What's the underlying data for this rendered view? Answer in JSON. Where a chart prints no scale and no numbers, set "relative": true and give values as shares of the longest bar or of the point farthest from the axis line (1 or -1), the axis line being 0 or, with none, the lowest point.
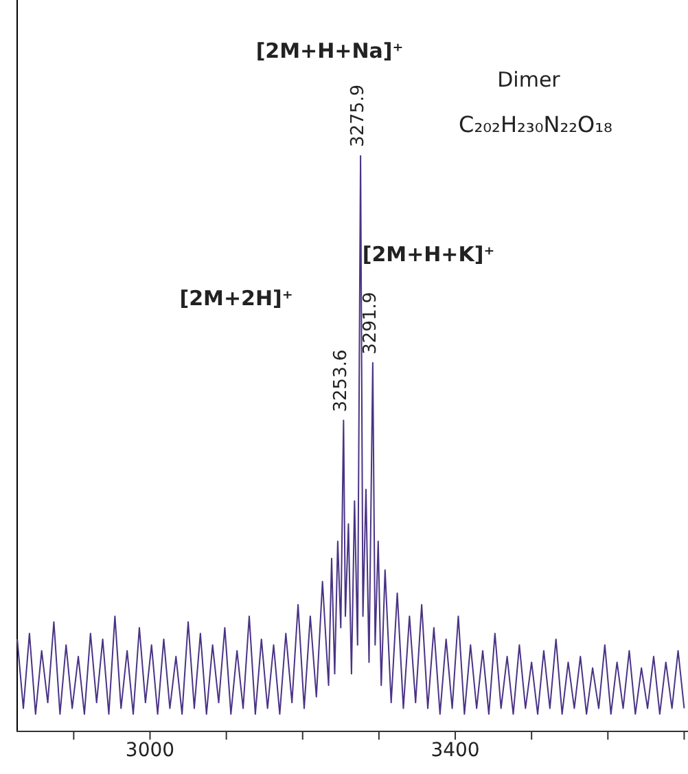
{
  "chart_data": {
    "type": "line",
    "relative": true,
    "color": "#4a3385",
    "marker": "none",
    "xlim": [
      2825,
      3705
    ],
    "xticks": [
      {
        "value": 2900,
        "label": null
      },
      3000,
      {
        "value": 3100,
        "label": null
      },
      {
        "value": 3200,
        "label": null
      },
      {
        "value": 3300,
        "label": null
      },
      3400,
      {
        "value": 3500,
        "label": null
      },
      {
        "value": 3600,
        "label": null
      },
      {
        "value": 3700,
        "label": null
      }
    ],
    "x": [
      2826,
      2834,
      2842,
      2850,
      2858,
      2866,
      2874,
      2882,
      2890,
      2898,
      2906,
      2914,
      2922,
      2930,
      2938,
      2946,
      2954,
      2962,
      2970,
      2978,
      2986,
      2994,
      3002,
      3010,
      3018,
      3026,
      3034,
      3042,
      3050,
      3058,
      3066,
      3074,
      3082,
      3090,
      3098,
      3106,
      3114,
      3122,
      3130,
      3138,
      3146,
      3154,
      3162,
      3170,
      3178,
      3186,
      3194,
      3202,
      3210,
      3218,
      3226,
      3234,
      3238,
      3242,
      3246,
      3250,
      3253.6,
      3256,
      3260,
      3264,
      3268,
      3272,
      3275.9,
      3279,
      3283,
      3287,
      3291.9,
      3295,
      3299,
      3303,
      3308,
      3316,
      3324,
      3332,
      3340,
      3348,
      3356,
      3364,
      3372,
      3380,
      3388,
      3396,
      3404,
      3412,
      3420,
      3428,
      3436,
      3444,
      3452,
      3460,
      3468,
      3476,
      3484,
      3492,
      3500,
      3508,
      3516,
      3524,
      3532,
      3540,
      3548,
      3556,
      3564,
      3572,
      3580,
      3588,
      3596,
      3604,
      3612,
      3620,
      3628,
      3636,
      3644,
      3652,
      3660,
      3668,
      3676,
      3684,
      3692,
      3700
    ],
    "values": [
      0.16,
      0.04,
      0.17,
      0.03,
      0.14,
      0.05,
      0.19,
      0.03,
      0.15,
      0.04,
      0.13,
      0.03,
      0.17,
      0.05,
      0.16,
      0.03,
      0.2,
      0.04,
      0.14,
      0.03,
      0.18,
      0.05,
      0.15,
      0.03,
      0.16,
      0.04,
      0.13,
      0.03,
      0.19,
      0.04,
      0.17,
      0.03,
      0.15,
      0.05,
      0.18,
      0.03,
      0.14,
      0.04,
      0.2,
      0.03,
      0.16,
      0.04,
      0.15,
      0.03,
      0.17,
      0.05,
      0.22,
      0.04,
      0.2,
      0.06,
      0.26,
      0.08,
      0.3,
      0.1,
      0.33,
      0.18,
      0.54,
      0.2,
      0.36,
      0.1,
      0.4,
      0.15,
      1.0,
      0.2,
      0.42,
      0.12,
      0.64,
      0.15,
      0.33,
      0.08,
      0.28,
      0.05,
      0.24,
      0.04,
      0.2,
      0.05,
      0.22,
      0.04,
      0.18,
      0.03,
      0.16,
      0.04,
      0.2,
      0.03,
      0.15,
      0.04,
      0.14,
      0.03,
      0.17,
      0.04,
      0.13,
      0.03,
      0.15,
      0.04,
      0.12,
      0.03,
      0.14,
      0.04,
      0.16,
      0.03,
      0.12,
      0.04,
      0.13,
      0.03,
      0.11,
      0.04,
      0.15,
      0.03,
      0.12,
      0.04,
      0.14,
      0.03,
      0.11,
      0.04,
      0.13,
      0.03,
      0.12,
      0.04,
      0.14,
      0.04
    ],
    "annotations": [
      "[2M+H+Na]⁺",
      "[2M+2H]⁺",
      "[2M+H+K]⁺",
      "Dimer",
      "C₂₀₂H₂₃₀N₂₂O₁₈",
      {
        "text": "3253.6",
        "x": 3253.6,
        "y": 0.54
      },
      {
        "text": "3275.9",
        "x": 3275.9,
        "y": 1.0
      },
      {
        "text": "3291.9",
        "x": 3291.9,
        "y": 0.64
      }
    ]
  }
}
